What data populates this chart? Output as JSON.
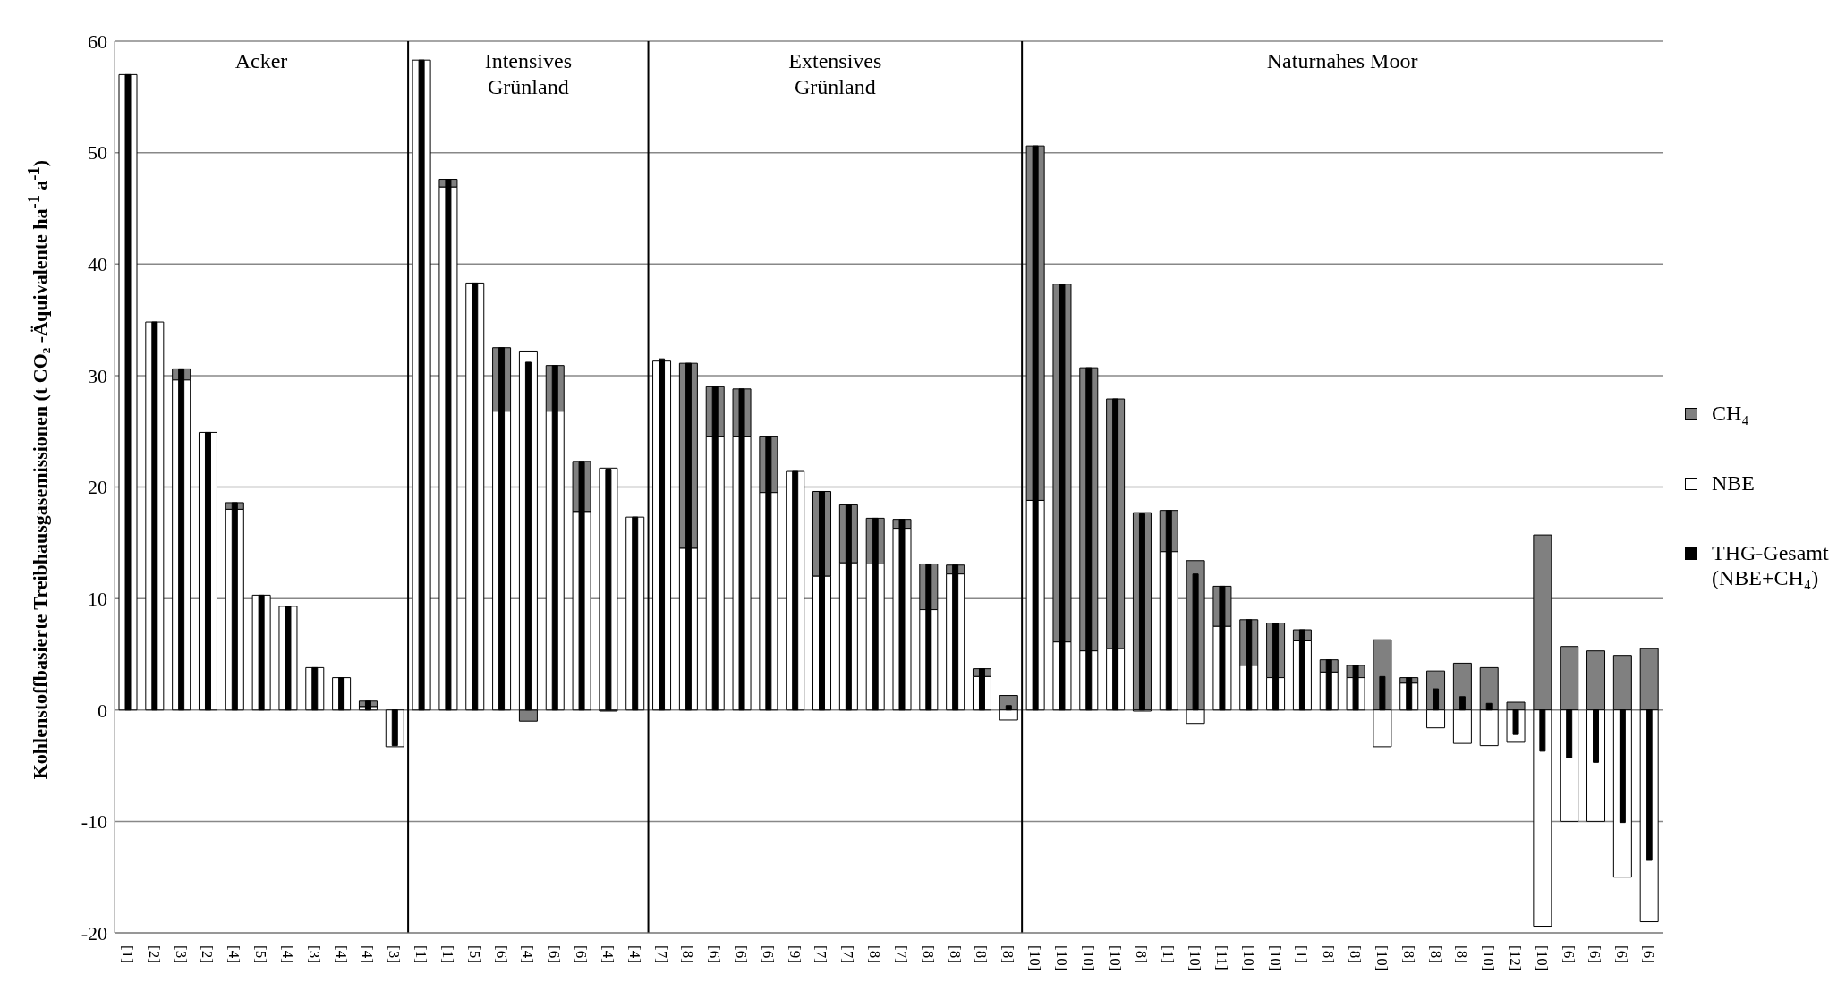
{
  "chart_data": {
    "type": "bar",
    "ylabel": "Kohlenstoffbasierte Treibhausgasemissionen (t CO₂ -Äquivalente ha$^{-1}$ a$^{-1}$)",
    "categories": [
      "[1]",
      "[2]",
      "[3]",
      "[2]",
      "[4]",
      "[5]",
      "[4]",
      "[3]",
      "[4]",
      "[4]",
      "[3]",
      "[1]",
      "[1]",
      "[5]",
      "[6]",
      "[4]",
      "[6]",
      "[6]",
      "[4]",
      "[4]",
      "[7]",
      "[8]",
      "[6]",
      "[6]",
      "[6]",
      "[9]",
      "[7]",
      "[7]",
      "[8]",
      "[7]",
      "[8]",
      "[8]",
      "[8]",
      "[8]",
      "[10]",
      "[10]",
      "[10]",
      "[10]",
      "[8]",
      "[1]",
      "[10]",
      "[11]",
      "[10]",
      "[10]",
      "[1]",
      "[8]",
      "[8]",
      "[10]",
      "[8]",
      "[8]",
      "[8]",
      "[10]",
      "[12]",
      "[10]",
      "[6]",
      "[6]",
      "[6]",
      "[6]"
    ],
    "series": [
      {
        "name": "CH₄",
        "color": "#808080",
        "values": [
          null,
          null,
          1,
          null,
          0.6,
          null,
          null,
          null,
          null,
          0.5,
          null,
          null,
          0.7,
          null,
          5.7,
          -1,
          4.1,
          4.5,
          -0.1,
          null,
          null,
          16.6,
          4.5,
          4.3,
          5,
          null,
          7.6,
          5.2,
          4.1,
          0.8,
          4.1,
          0.8,
          0.7,
          1.3,
          31.8,
          32.1,
          25.4,
          22.4,
          17.7,
          3.7,
          13.4,
          3.6,
          4.1,
          4.9,
          1,
          1.1,
          1.1,
          6.3,
          0.5,
          3.5,
          4.2,
          3.8,
          0.7,
          15.7,
          5.7,
          5.3,
          4.9,
          5.5
        ],
        "base": [
          null,
          null,
          29.6,
          null,
          18,
          null,
          null,
          null,
          null,
          0.3,
          null,
          null,
          46.9,
          null,
          26.8,
          0,
          26.8,
          17.8,
          0,
          null,
          null,
          14.5,
          24.5,
          24.5,
          19.5,
          null,
          12,
          13.2,
          13.1,
          16.3,
          9,
          12.2,
          3,
          0,
          18.8,
          6.1,
          5.3,
          5.5,
          0,
          14.2,
          0,
          7.5,
          4,
          2.9,
          6.2,
          3.4,
          2.9,
          0,
          2.4,
          0,
          0,
          0,
          0,
          0,
          0,
          0,
          0,
          0
        ]
      },
      {
        "name": "NBE",
        "color": "#ffffff",
        "values": [
          57,
          34.8,
          29.6,
          24.9,
          18,
          10.3,
          9.3,
          3.8,
          2.9,
          0.3,
          -3.3,
          58.3,
          46.9,
          38.3,
          26.8,
          32.2,
          26.8,
          17.8,
          21.7,
          17.3,
          31.3,
          14.5,
          24.5,
          24.5,
          19.5,
          21.4,
          12,
          13.2,
          13.1,
          16.3,
          9,
          12.2,
          3,
          -0.9,
          18.8,
          6.1,
          5.3,
          5.5,
          -0.1,
          14.2,
          -1.2,
          7.5,
          4,
          2.9,
          6.2,
          3.4,
          2.9,
          -3.3,
          2.4,
          -1.6,
          -3,
          -3.2,
          -2.9,
          -19.4,
          -10,
          -10,
          -15,
          -19
        ]
      },
      {
        "name": "THG-Gesamt (NBE+CH₄)",
        "color": "#000000",
        "values": [
          57,
          34.8,
          30.6,
          24.9,
          18.6,
          10.3,
          9.3,
          3.8,
          2.9,
          0.8,
          -3.2,
          58.3,
          47.6,
          38.3,
          32.5,
          31.2,
          30.9,
          22.3,
          21.6,
          17.3,
          31.5,
          31.1,
          29,
          28.8,
          24.5,
          21.4,
          19.6,
          18.4,
          17.2,
          17.1,
          13.1,
          13,
          3.7,
          0.4,
          50.6,
          38.2,
          30.7,
          27.9,
          17.6,
          17.9,
          12.2,
          11.1,
          8.1,
          7.8,
          7.2,
          4.5,
          4,
          3,
          2.9,
          1.9,
          1.2,
          0.6,
          -2.2,
          -3.7,
          -4.3,
          -4.7,
          -10.1,
          -13.5
        ]
      }
    ],
    "ylim": [
      -20,
      60
    ],
    "yticks": [
      -20,
      -10,
      0,
      10,
      20,
      30,
      40,
      50,
      60
    ],
    "grid": "y",
    "legend": "right",
    "annotations": [
      "Acker",
      "Intensives\nGrünland",
      "Extensives\nGrünland",
      "Naturnahes Moor"
    ]
  }
}
